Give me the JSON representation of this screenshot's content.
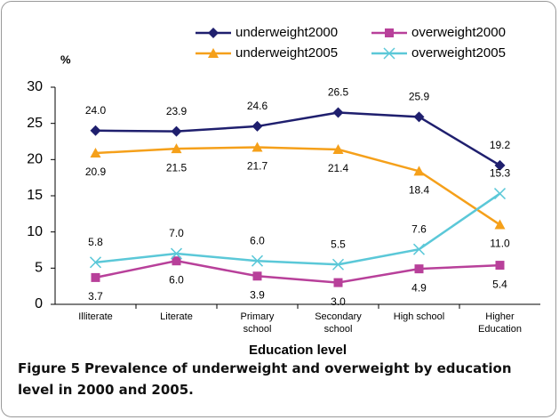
{
  "chart_data": {
    "type": "line",
    "y_label": "%",
    "x_label": "Education level",
    "categories": [
      "Illiterate",
      "Literate",
      "Primary school",
      "Secondary school",
      "High school",
      "Higher Education"
    ],
    "series": [
      {
        "name": "underweight2000",
        "color": "#1f1f6e",
        "marker": "diamond",
        "label_pos": "above",
        "values": [
          24.0,
          23.9,
          24.6,
          26.5,
          25.9,
          19.2
        ],
        "value_labels": [
          "24.0",
          "23.9",
          "24.6",
          "26.5",
          "25.9",
          "19.2"
        ]
      },
      {
        "name": "overweight2000",
        "color": "#b8409a",
        "marker": "square",
        "label_pos": "below",
        "values": [
          3.7,
          6.0,
          3.9,
          3.0,
          4.9,
          5.4
        ],
        "value_labels": [
          "3.7",
          "6.0",
          "3.9",
          "3.0",
          "4.9",
          "5.4"
        ]
      },
      {
        "name": "underweight2005",
        "color": "#f5a01a",
        "marker": "triangle",
        "label_pos": "below",
        "values": [
          20.9,
          21.5,
          21.7,
          21.4,
          18.4,
          11.0
        ],
        "value_labels": [
          "20.9",
          "21.5",
          "21.7",
          "21.4",
          "18.4",
          "11.0"
        ]
      },
      {
        "name": "overweight2005",
        "color": "#5bc8d8",
        "marker": "x",
        "label_pos": "above",
        "values": [
          5.8,
          7.0,
          6.0,
          5.5,
          7.6,
          15.3
        ],
        "value_labels": [
          "5.8",
          "7.0",
          "6.0",
          "5.5",
          "7.6",
          "15.3"
        ]
      }
    ],
    "ylim": [
      0,
      30
    ],
    "yticks": [
      0,
      5,
      10,
      15,
      20,
      25,
      30
    ],
    "grid": false,
    "legend": "top"
  },
  "caption_label": "Figure 5",
  "caption": "Prevalence of underweight and overweight by education level in 2000 and 2005."
}
